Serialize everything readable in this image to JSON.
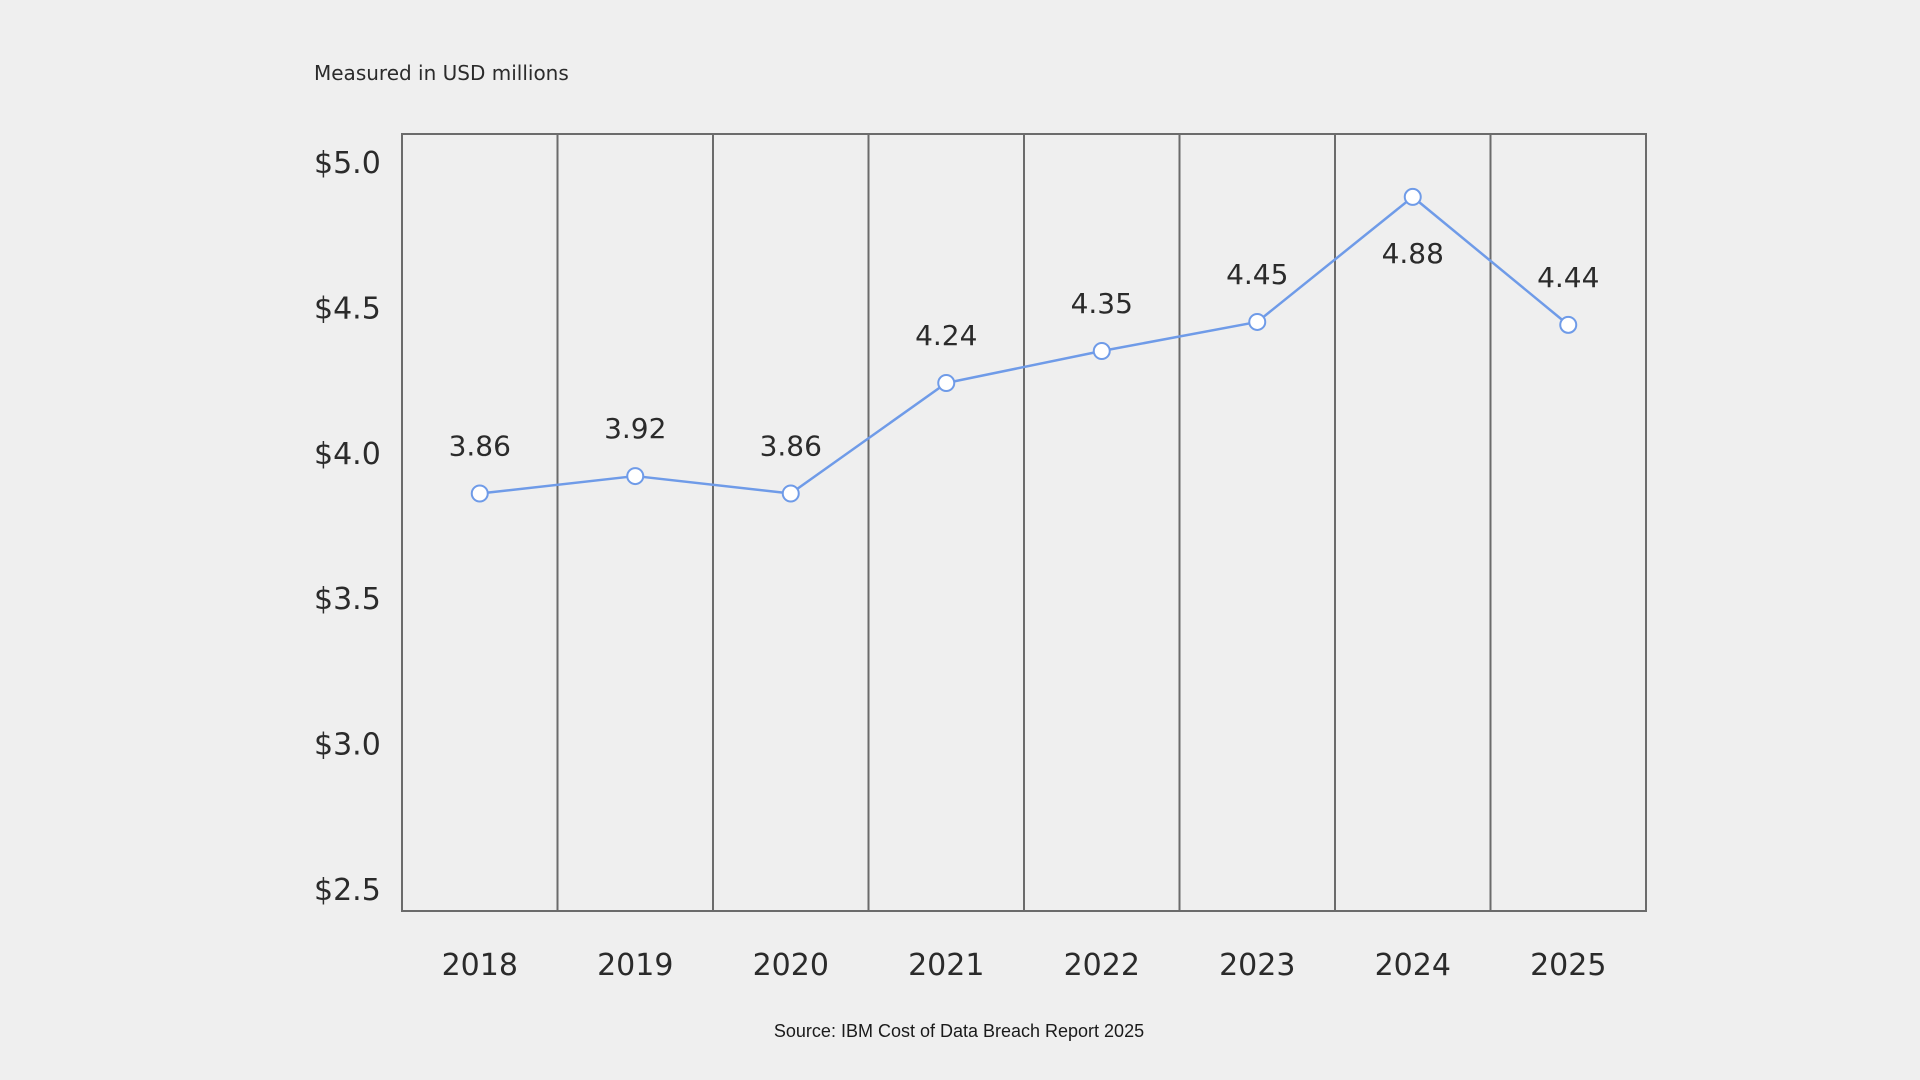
{
  "chart_data": {
    "type": "line",
    "subtitle": "Measured in USD millions",
    "x": [
      "2018",
      "2019",
      "2020",
      "2021",
      "2022",
      "2023",
      "2024",
      "2025"
    ],
    "series": [
      {
        "values": [
          3.86,
          3.92,
          3.86,
          4.24,
          4.35,
          4.45,
          4.88,
          4.44
        ]
      }
    ],
    "data_labels": [
      "3.86",
      "3.92",
      "3.86",
      "4.24",
      "4.35",
      "4.45",
      "4.88",
      "4.44"
    ],
    "ylim": [
      2.5,
      5.0
    ],
    "yticks": [
      5.0,
      4.5,
      4.0,
      3.5,
      3.0,
      2.5
    ],
    "ytick_labels": [
      "$5.0",
      "$4.5",
      "$4.0",
      "$3.5",
      "$3.0",
      "$2.5"
    ],
    "grid": "vertical",
    "legend": "none",
    "source": "Source: IBM Cost of Data Breach Report 2025",
    "colors": {
      "line": "#6f9be8",
      "marker_fill": "#ffffff",
      "grid": "#6b6b6b",
      "background": "#efefef"
    }
  }
}
